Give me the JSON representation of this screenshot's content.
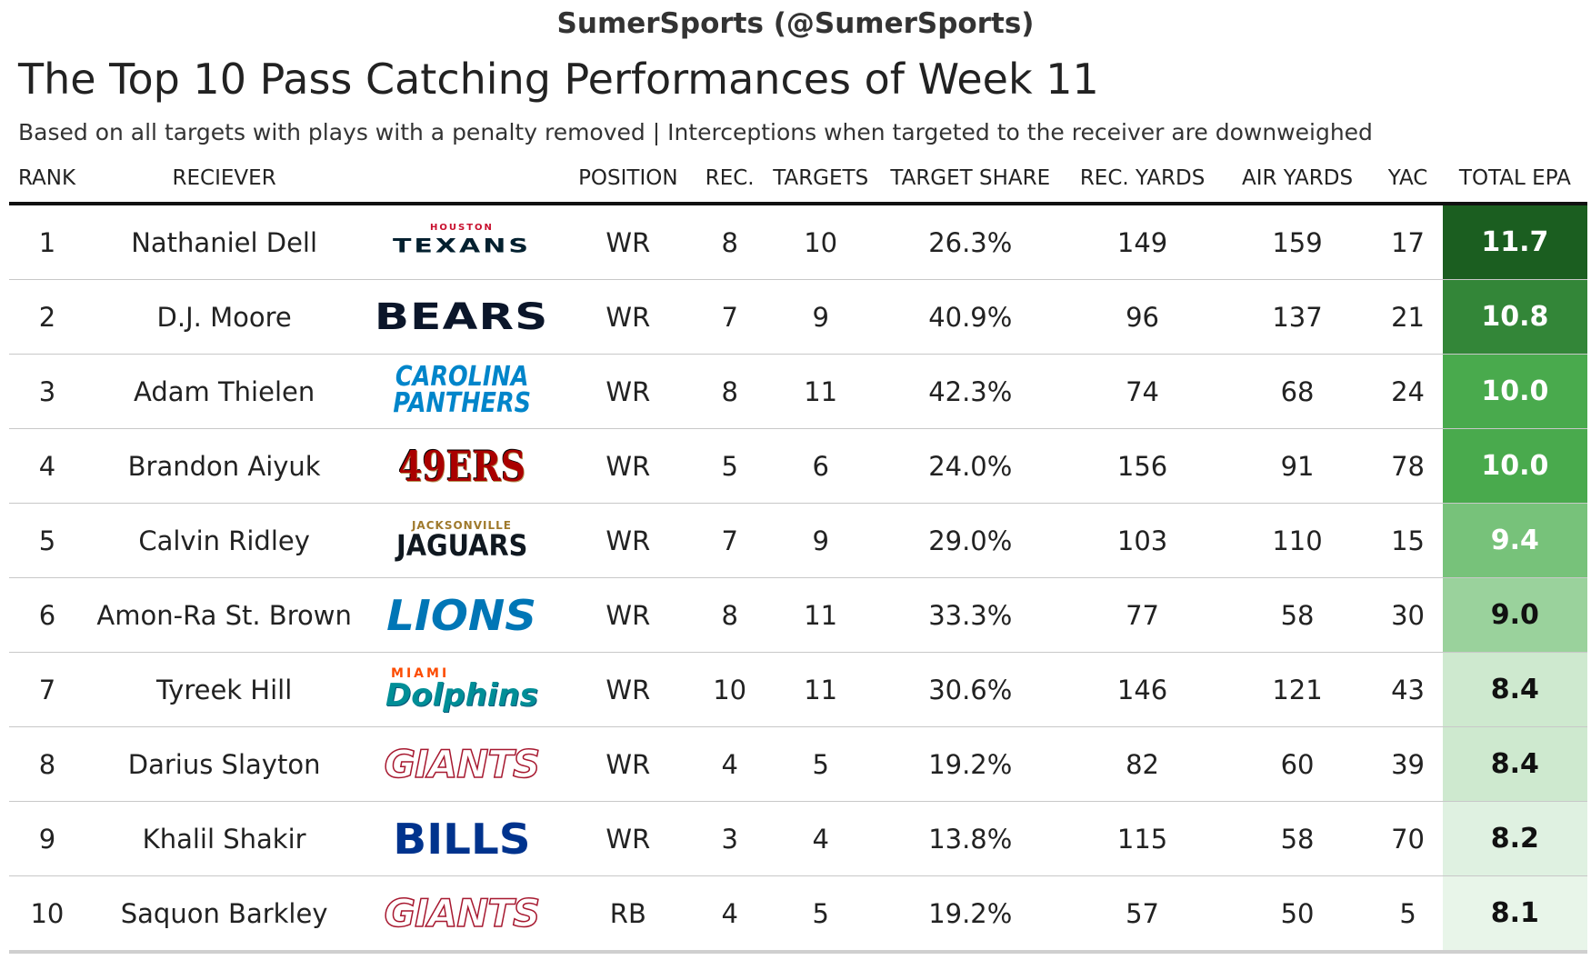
{
  "attribution": "SumerSports (@SumerSports)",
  "title": "The Top 10 Pass Catching Performances of Week 11",
  "subtitle": "Based on all targets with plays with a penalty removed | Interceptions when targeted to the receiver are downweighed",
  "columns": {
    "rank": "RANK",
    "receiver": "RECIEVER",
    "team": "",
    "position": "POSITION",
    "rec": "REC.",
    "targets": "TARGETS",
    "target_share": "TARGET SHARE",
    "rec_yards": "REC. YARDS",
    "air_yards": "AIR YARDS",
    "yac": "YAC",
    "total_epa": "TOTAL EPA"
  },
  "colors": {
    "epa_high": "#1b5e20",
    "epa_low": "#e8f5e9"
  },
  "chart_data": {
    "type": "table",
    "title": "The Top 10 Pass Catching Performances of Week 11",
    "subtitle": "Based on all targets with plays with a penalty removed | Interceptions when targeted to the receiver are downweighed",
    "rows": [
      {
        "rank": "1",
        "receiver": "Nathaniel Dell",
        "team": "texans",
        "logo_small": "HOUSTON",
        "logo_big": "TEXANS",
        "position": "WR",
        "rec": "8",
        "targets": "10",
        "target_share": "26.3%",
        "rec_yards": "149",
        "air_yards": "159",
        "yac": "17",
        "total_epa": "11.7"
      },
      {
        "rank": "2",
        "receiver": "D.J. Moore",
        "team": "bears",
        "logo_small": "",
        "logo_big": "BEARS",
        "position": "WR",
        "rec": "7",
        "targets": "9",
        "target_share": "40.9%",
        "rec_yards": "96",
        "air_yards": "137",
        "yac": "21",
        "total_epa": "10.8"
      },
      {
        "rank": "3",
        "receiver": "Adam Thielen",
        "team": "panthers",
        "logo_small": "CAROLINA",
        "logo_big": "PANTHERS",
        "position": "WR",
        "rec": "8",
        "targets": "11",
        "target_share": "42.3%",
        "rec_yards": "74",
        "air_yards": "68",
        "yac": "24",
        "total_epa": "10.0"
      },
      {
        "rank": "4",
        "receiver": "Brandon Aiyuk",
        "team": "49ers",
        "logo_small": "",
        "logo_big": "49ERS",
        "position": "WR",
        "rec": "5",
        "targets": "6",
        "target_share": "24.0%",
        "rec_yards": "156",
        "air_yards": "91",
        "yac": "78",
        "total_epa": "10.0"
      },
      {
        "rank": "5",
        "receiver": "Calvin Ridley",
        "team": "jaguars",
        "logo_small": "JACKSONVILLE",
        "logo_big": "JAGUARS",
        "position": "WR",
        "rec": "7",
        "targets": "9",
        "target_share": "29.0%",
        "rec_yards": "103",
        "air_yards": "110",
        "yac": "15",
        "total_epa": "9.4"
      },
      {
        "rank": "6",
        "receiver": "Amon-Ra St. Brown",
        "team": "lions",
        "logo_small": "",
        "logo_big": "LIONS",
        "position": "WR",
        "rec": "8",
        "targets": "11",
        "target_share": "33.3%",
        "rec_yards": "77",
        "air_yards": "58",
        "yac": "30",
        "total_epa": "9.0"
      },
      {
        "rank": "7",
        "receiver": "Tyreek Hill",
        "team": "dolphins",
        "logo_small": "MIAMI",
        "logo_big": "Dolphins",
        "position": "WR",
        "rec": "10",
        "targets": "11",
        "target_share": "30.6%",
        "rec_yards": "146",
        "air_yards": "121",
        "yac": "43",
        "total_epa": "8.4"
      },
      {
        "rank": "8",
        "receiver": "Darius Slayton",
        "team": "giants",
        "logo_small": "",
        "logo_big": "GIANTS",
        "position": "WR",
        "rec": "4",
        "targets": "5",
        "target_share": "19.2%",
        "rec_yards": "82",
        "air_yards": "60",
        "yac": "39",
        "total_epa": "8.4"
      },
      {
        "rank": "9",
        "receiver": "Khalil Shakir",
        "team": "bills",
        "logo_small": "",
        "logo_big": "BILLS",
        "position": "WR",
        "rec": "3",
        "targets": "4",
        "target_share": "13.8%",
        "rec_yards": "115",
        "air_yards": "58",
        "yac": "70",
        "total_epa": "8.2"
      },
      {
        "rank": "10",
        "receiver": "Saquon Barkley",
        "team": "giants",
        "logo_small": "",
        "logo_big": "GIANTS",
        "position": "RB",
        "rec": "4",
        "targets": "5",
        "target_share": "19.2%",
        "rec_yards": "57",
        "air_yards": "50",
        "yac": "5",
        "total_epa": "8.1"
      }
    ]
  }
}
